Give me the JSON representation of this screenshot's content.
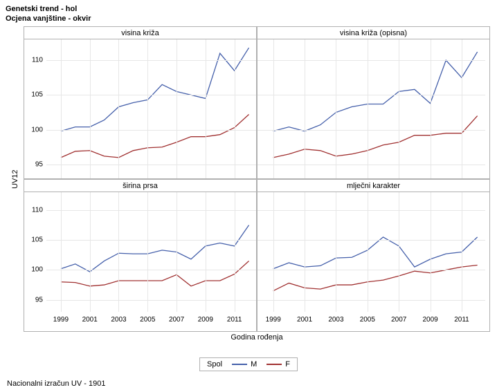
{
  "titles": {
    "line1": "Genetski trend - hol",
    "line2": "Ocjena vanjštine - okvir"
  },
  "y_axis_label": "UV12",
  "x_axis_label": "Godina rođenja",
  "footer": "Nacionalni izračun UV - 1901",
  "legend": {
    "title": "Spol",
    "items": [
      {
        "label": "M",
        "color": "#445faa"
      },
      {
        "label": "F",
        "color": "#a03030"
      }
    ]
  },
  "axes": {
    "ylim": [
      93,
      113
    ],
    "y_ticks": [
      95,
      100,
      105,
      110
    ],
    "xlim": [
      1998,
      2012.5
    ],
    "x_ticks": [
      1999,
      2001,
      2003,
      2005,
      2007,
      2009,
      2011
    ],
    "grid_color": "#e6e6e6",
    "border_color": "#b0b0b0",
    "tick_fontsize": 10,
    "label_fontsize": 11
  },
  "panels": [
    {
      "title": "visina križa",
      "row": 1,
      "col": 1,
      "series": [
        {
          "name": "M",
          "color": "#445faa",
          "width": 1.3,
          "x": [
            1999,
            2000,
            2001,
            2002,
            2003,
            2004,
            2005,
            2006,
            2007,
            2008,
            2009,
            2010,
            2011,
            2012
          ],
          "y": [
            99.8,
            100.4,
            100.4,
            101.4,
            103.3,
            103.9,
            104.3,
            106.5,
            105.5,
            105.0,
            104.5,
            111.0,
            108.5,
            111.8
          ]
        },
        {
          "name": "F",
          "color": "#a03030",
          "width": 1.3,
          "x": [
            1999,
            2000,
            2001,
            2002,
            2003,
            2004,
            2005,
            2006,
            2007,
            2008,
            2009,
            2010,
            2011,
            2012
          ],
          "y": [
            96.0,
            96.9,
            97.0,
            96.2,
            96.0,
            97.0,
            97.4,
            97.5,
            98.2,
            99.0,
            99.0,
            99.3,
            100.3,
            102.2
          ]
        }
      ]
    },
    {
      "title": "visina križa (opisna)",
      "row": 1,
      "col": 2,
      "series": [
        {
          "name": "M",
          "color": "#445faa",
          "width": 1.3,
          "x": [
            1999,
            2000,
            2001,
            2002,
            2003,
            2004,
            2005,
            2006,
            2007,
            2008,
            2009,
            2010,
            2011,
            2012
          ],
          "y": [
            99.8,
            100.4,
            99.8,
            100.7,
            102.5,
            103.3,
            103.7,
            103.7,
            105.5,
            105.8,
            103.8,
            110.0,
            107.5,
            111.2
          ]
        },
        {
          "name": "F",
          "color": "#a03030",
          "width": 1.3,
          "x": [
            1999,
            2000,
            2001,
            2002,
            2003,
            2004,
            2005,
            2006,
            2007,
            2008,
            2009,
            2010,
            2011,
            2012
          ],
          "y": [
            96.0,
            96.5,
            97.2,
            97.0,
            96.2,
            96.5,
            97.0,
            97.8,
            98.2,
            99.2,
            99.2,
            99.5,
            99.5,
            102.0
          ]
        }
      ]
    },
    {
      "title": "širina prsa",
      "row": 2,
      "col": 1,
      "series": [
        {
          "name": "M",
          "color": "#445faa",
          "width": 1.3,
          "x": [
            1999,
            2000,
            2001,
            2002,
            2003,
            2004,
            2005,
            2006,
            2007,
            2008,
            2009,
            2010,
            2011,
            2012
          ],
          "y": [
            100.2,
            101.0,
            99.7,
            101.5,
            102.8,
            102.7,
            102.7,
            103.3,
            103.0,
            101.8,
            104.0,
            104.5,
            104.0,
            107.5
          ]
        },
        {
          "name": "F",
          "color": "#a03030",
          "width": 1.3,
          "x": [
            1999,
            2000,
            2001,
            2002,
            2003,
            2004,
            2005,
            2006,
            2007,
            2008,
            2009,
            2010,
            2011,
            2012
          ],
          "y": [
            98.0,
            97.9,
            97.3,
            97.5,
            98.2,
            98.2,
            98.2,
            98.2,
            99.2,
            97.3,
            98.2,
            98.2,
            99.3,
            101.5
          ]
        }
      ]
    },
    {
      "title": "mlječni karakter",
      "row": 2,
      "col": 2,
      "series": [
        {
          "name": "M",
          "color": "#445faa",
          "width": 1.3,
          "x": [
            1999,
            2000,
            2001,
            2002,
            2003,
            2004,
            2005,
            2006,
            2007,
            2008,
            2009,
            2010,
            2011,
            2012
          ],
          "y": [
            100.2,
            101.2,
            100.5,
            100.7,
            102.0,
            102.1,
            103.3,
            105.5,
            104.0,
            100.5,
            101.8,
            102.7,
            103.0,
            105.5
          ]
        },
        {
          "name": "F",
          "color": "#a03030",
          "width": 1.3,
          "x": [
            1999,
            2000,
            2001,
            2002,
            2003,
            2004,
            2005,
            2006,
            2007,
            2008,
            2009,
            2010,
            2011,
            2012
          ],
          "y": [
            96.5,
            97.8,
            97.0,
            96.8,
            97.5,
            97.5,
            98.0,
            98.3,
            99.0,
            99.8,
            99.5,
            100.0,
            100.5,
            100.8
          ]
        }
      ]
    }
  ]
}
